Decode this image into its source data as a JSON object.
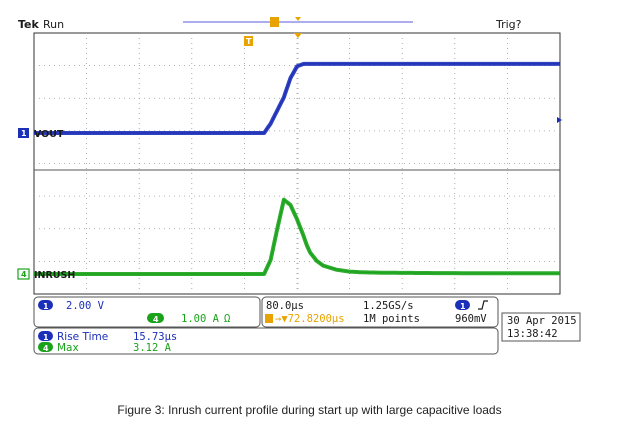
{
  "header": {
    "brand": "Tek",
    "status": "Run",
    "trigger_status": "Trig?",
    "trigger_marker_label": "T"
  },
  "channels": {
    "ch1": {
      "number": "1",
      "label": "VOUT",
      "color": "#1c2fb8"
    },
    "ch4": {
      "number": "4",
      "label": "INRUSH",
      "color": "#1aa31a"
    }
  },
  "readout": {
    "ch1_scale": "2.00 V",
    "ch4_scale": "1.00 A",
    "ch4_coupling": "Ω",
    "ch4_number": "4",
    "ch1_number": "1",
    "timebase": "80.0µs",
    "trigger_position": "→▼72.8200µs",
    "sample_rate": "1.25GS/s",
    "record_length": "1M points",
    "trigger_source": "1",
    "trigger_slope": "ƒ",
    "trigger_level": "960mV",
    "date": "30 Apr 2015",
    "time": "13:38:42"
  },
  "measurements": [
    {
      "channel": "1",
      "name": "Rise Time",
      "value": "15.73µs",
      "color": "#1c2fb8"
    },
    {
      "channel": "4",
      "name": "Max",
      "value": "3.12 A",
      "color": "#1aa31a"
    }
  ],
  "chart_data": {
    "type": "line",
    "x_unit": "µs",
    "x_scale_per_div": 80,
    "x_divisions": 10,
    "x": [
      -400,
      -200,
      -50,
      -40,
      -30,
      -20,
      -10,
      0,
      10,
      15,
      20,
      30,
      40,
      60,
      80,
      100,
      140,
      200,
      300,
      400
    ],
    "series": [
      {
        "name": "VOUT",
        "unit": "V",
        "scale_per_div": 2.0,
        "values": [
          0,
          0,
          0,
          0.8,
          1.9,
          3.0,
          4.6,
          5.6,
          5.8,
          5.8,
          5.8,
          5.8,
          5.8,
          5.8,
          5.8,
          5.8,
          5.8,
          5.8,
          5.8,
          5.8
        ]
      },
      {
        "name": "INRUSH",
        "unit": "A",
        "scale_per_div": 1.0,
        "values": [
          0,
          0,
          0,
          0.6,
          1.9,
          3.12,
          2.9,
          2.3,
          1.6,
          1.2,
          0.9,
          0.55,
          0.35,
          0.18,
          0.1,
          0.07,
          0.05,
          0.04,
          0.03,
          0.03
        ]
      }
    ],
    "max_current": 3.12,
    "rise_time": 15.73,
    "grid": true
  },
  "caption": "Figure 3: Inrush current profile during start up with large capacitive loads"
}
